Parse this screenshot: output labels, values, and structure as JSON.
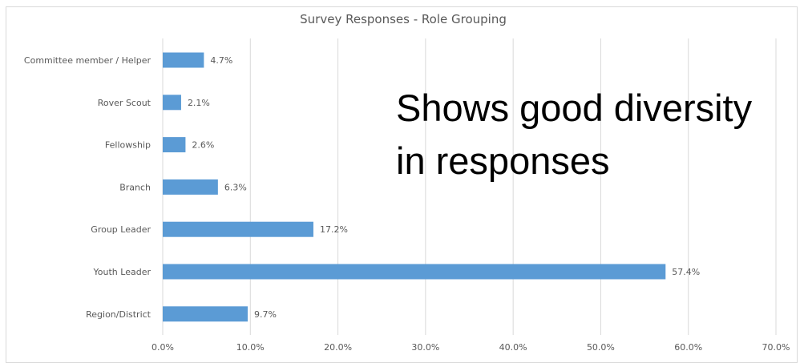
{
  "chart_data": {
    "type": "bar",
    "orientation": "horizontal",
    "title": "Survey Responses - Role Grouping",
    "categories": [
      "Committee member / Helper",
      "Rover Scout",
      "Fellowship",
      "Branch",
      "Group Leader",
      "Youth Leader",
      "Region/District"
    ],
    "values": [
      4.7,
      2.1,
      2.6,
      6.3,
      17.2,
      57.4,
      9.7
    ],
    "value_labels": [
      "4.7%",
      "2.1%",
      "2.6%",
      "6.3%",
      "17.2%",
      "57.4%",
      "9.7%"
    ],
    "x_ticks": [
      "0.0%",
      "10.0%",
      "20.0%",
      "30.0%",
      "40.0%",
      "50.0%",
      "60.0%",
      "70.0%"
    ],
    "xlim": [
      0,
      70
    ],
    "grid": "vertical",
    "xlabel": "",
    "ylabel": "",
    "bar_color": "#5b9bd5",
    "grid_color": "#d9d9d9"
  },
  "annotation": {
    "line1": "Shows good diversity",
    "line2": "in responses"
  }
}
